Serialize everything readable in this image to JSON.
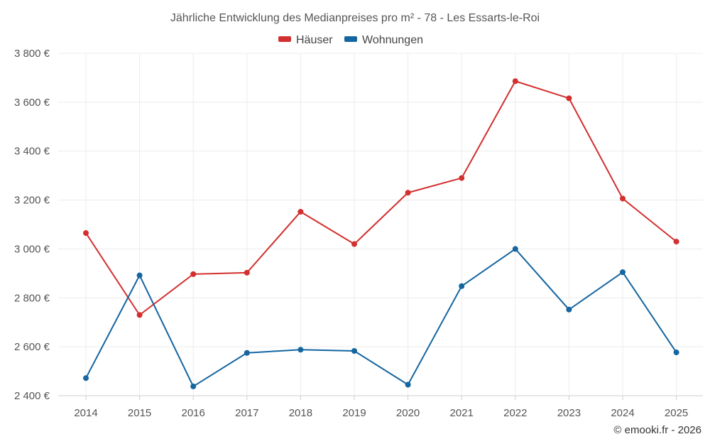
{
  "chart_data": {
    "type": "line",
    "title": "Jährliche Entwicklung des Medianpreises pro m² - 78 - Les Essarts-le-Roi",
    "categories": [
      "2014",
      "2015",
      "2016",
      "2017",
      "2018",
      "2019",
      "2020",
      "2021",
      "2022",
      "2023",
      "2024",
      "2025"
    ],
    "series": [
      {
        "name": "Häuser",
        "color": "#d32f2f",
        "values": [
          3065,
          2730,
          2897,
          2903,
          3152,
          3020,
          3230,
          3290,
          3686,
          3616,
          3206,
          3030
        ]
      },
      {
        "name": "Wohnungen",
        "color": "#1565a0",
        "values": [
          2472,
          2892,
          2438,
          2575,
          2588,
          2583,
          2445,
          2848,
          3000,
          2752,
          2905,
          2577
        ]
      }
    ],
    "ylim": [
      2400,
      3800
    ],
    "yticks": [
      2400,
      2600,
      2800,
      3000,
      3200,
      3400,
      3600,
      3800
    ],
    "ytick_labels": [
      "2 400 €",
      "2 600 €",
      "2 800 €",
      "3 000 €",
      "3 200 €",
      "3 400 €",
      "3 600 €",
      "3 800 €"
    ],
    "xlabel": "",
    "ylabel": "",
    "legend": "top-center",
    "grid": true
  },
  "credit": "© emooki.fr - 2026"
}
